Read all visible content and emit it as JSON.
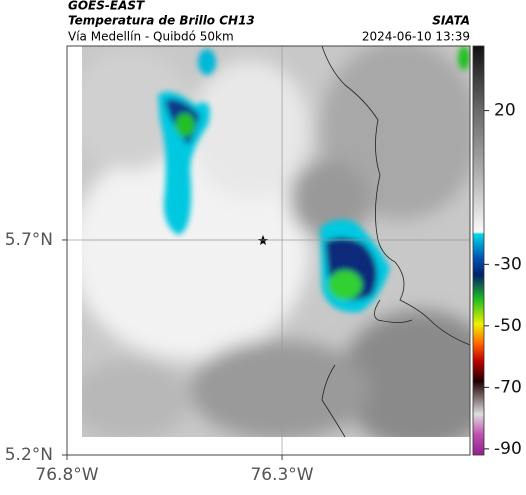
{
  "header": {
    "title": "GOES-EAST",
    "subtitle": "Temperatura de Brillo CH13",
    "caption": "Vía Medellín - Quibdó 50km",
    "source": "SIATA",
    "datetime": "2024-06-10 13:39"
  },
  "map": {
    "lon_range": [
      -76.8,
      -75.863
    ],
    "lat_range": [
      5.2,
      6.151
    ],
    "lon_ticks": [
      {
        "value": -76.8,
        "label": "76.8°W"
      },
      {
        "value": -76.3,
        "label": "76.3°W"
      }
    ],
    "lat_ticks": [
      {
        "value": 5.7,
        "label": "5.7°N"
      },
      {
        "value": 5.2,
        "label": "5.2°N"
      }
    ],
    "colorbar_range": [
      -92,
      41
    ],
    "colorbar_ticks": [
      20,
      -30,
      -50,
      -70,
      -90
    ]
  }
}
